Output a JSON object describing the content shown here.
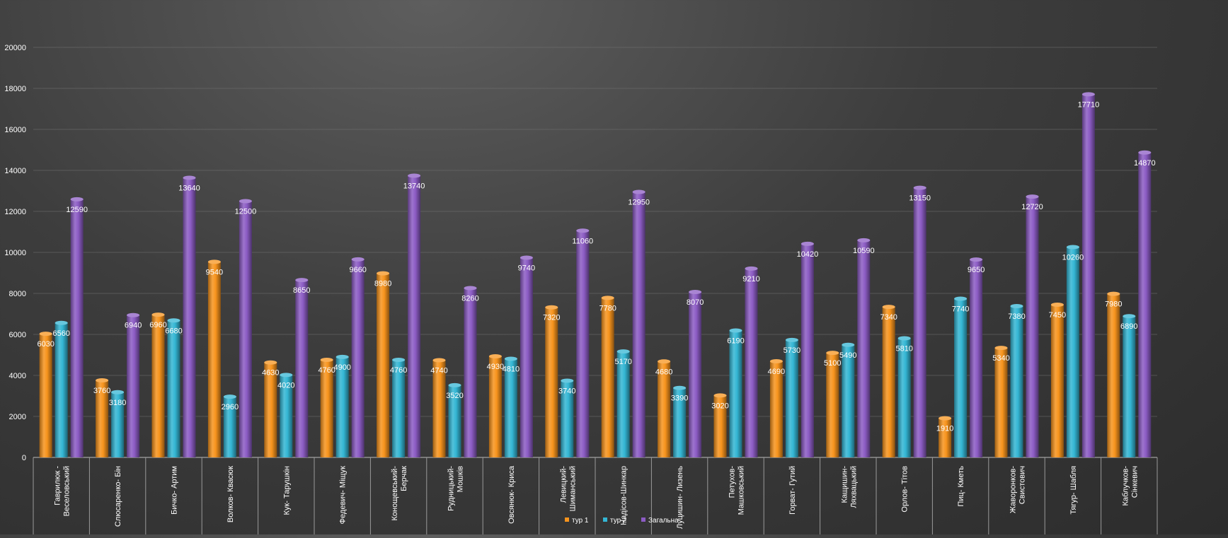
{
  "chart_data": {
    "type": "bar",
    "categories": [
      "Гаврилюк - Веселовський",
      "Слюсаренко- Бін",
      "Бичко- Артим",
      "Волков- Квасюк",
      "Кук- Тарушкін",
      "Федевич- Міщук",
      "Конощевський- Берчак",
      "Рудницький- Мошків",
      "Овсянюк- Криса",
      "Левицкий- Шиманський",
      "Надісов-Шинкар",
      "Луцишин- Лизень",
      "Петухов- Машковський",
      "Горват- Гутий",
      "Кащишин- Ляхвацький",
      "Орлов- Тітов",
      "Пиц- Кметь",
      "Жаворонков- Свистович",
      "Тягур- Шабля",
      "Каблучков- Сінкевич"
    ],
    "series": [
      {
        "name": "тур 1",
        "color": "#f7941d",
        "values": [
          6030,
          3760,
          6960,
          9540,
          4630,
          4760,
          8980,
          4740,
          4930,
          7320,
          7780,
          4680,
          3020,
          4690,
          5100,
          7340,
          1910,
          5340,
          7450,
          7980
        ]
      },
      {
        "name": "тур 2",
        "color": "#34b6d4",
        "values": [
          6560,
          3180,
          6680,
          2960,
          4020,
          4900,
          4760,
          3520,
          4810,
          3740,
          5170,
          3390,
          6190,
          5730,
          5490,
          5810,
          7740,
          7380,
          10260,
          6890
        ]
      },
      {
        "name": "Загальна",
        "color": "#8c5cc4",
        "values": [
          12590,
          6940,
          13640,
          12500,
          8650,
          9660,
          13740,
          8260,
          9740,
          11060,
          12950,
          8070,
          9210,
          10420,
          10590,
          13150,
          9650,
          12720,
          17710,
          14870
        ]
      }
    ],
    "y_ticks": [
      "0",
      "2000",
      "4000",
      "6000",
      "8000",
      "10000",
      "12000",
      "14000",
      "16000",
      "18000",
      "20000"
    ],
    "ylim": [
      0,
      20000
    ],
    "grid": true,
    "legend_position": "bottom",
    "data_labels": true
  }
}
